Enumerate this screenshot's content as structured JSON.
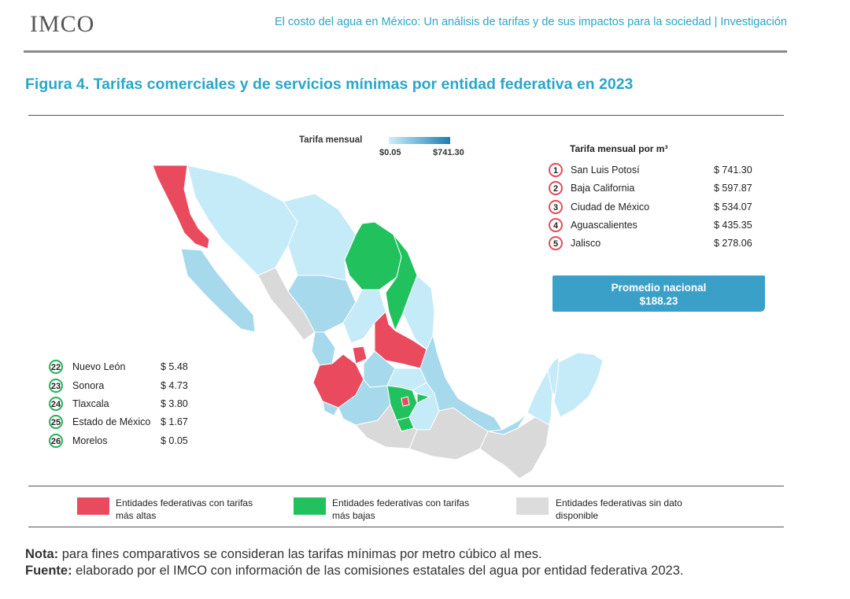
{
  "header": {
    "logo_text": "IMCO",
    "title": "El costo del agua en México: Un análisis de tarifas y de sus impactos para la sociedad | Investigación"
  },
  "figure": {
    "title": "Figura 4. Tarifas comerciales y de servicios mínimas por entidad federativa en 2023"
  },
  "scale": {
    "label": "Tarifa mensual",
    "min": "$0.05",
    "max": "$741.30"
  },
  "top_ranking": {
    "title": "Tarifa mensual por m³",
    "items": [
      {
        "rank": "1",
        "name": "San Luis Potosí",
        "value": "$ 741.30"
      },
      {
        "rank": "2",
        "name": "Baja California",
        "value": "$ 597.87"
      },
      {
        "rank": "3",
        "name": "Ciudad de México",
        "value": "$ 534.07"
      },
      {
        "rank": "4",
        "name": "Aguascalientes",
        "value": "$ 435.35"
      },
      {
        "rank": "5",
        "name": "Jalisco",
        "value": "$ 278.06"
      }
    ]
  },
  "bottom_ranking": {
    "items": [
      {
        "rank": "22",
        "name": "Nuevo León",
        "value": "$ 5.48"
      },
      {
        "rank": "23",
        "name": "Sonora",
        "value": "$ 4.73"
      },
      {
        "rank": "24",
        "name": "Tlaxcala",
        "value": "$ 3.80"
      },
      {
        "rank": "25",
        "name": "Estado de México",
        "value": "$ 1.67"
      },
      {
        "rank": "26",
        "name": "Morelos",
        "value": "$ 0.05"
      }
    ]
  },
  "promedio": {
    "label": "Promedio nacional",
    "value": "$188.23"
  },
  "legend": {
    "high": {
      "line1": "Entidades federativas con tarifas",
      "line2": "más altas",
      "color": "#ea4a5e"
    },
    "low": {
      "line1": "Entidades federativas con tarifas",
      "line2": "más bajas",
      "color": "#21c25e"
    },
    "nodata": {
      "line1": "Entidades federativas sin dato",
      "line2": "disponible",
      "color": "#dcdcdc"
    }
  },
  "notes": {
    "nota_label": "Nota:",
    "nota_text": " para fines comparativos se consideran las tarifas mínimas por metro cúbico al mes.",
    "fuente_label": "Fuente:",
    "fuente_text": " elaborado por el IMCO con información de las comisiones estatales del agua por entidad federativa 2023."
  },
  "map_colors": {
    "high": "#ea4a5e",
    "low": "#21c25e",
    "nodata": "#d9d9d9",
    "light": "#c5ebf8",
    "mid": "#a6d9ec",
    "dark": "#7fc3e0"
  }
}
